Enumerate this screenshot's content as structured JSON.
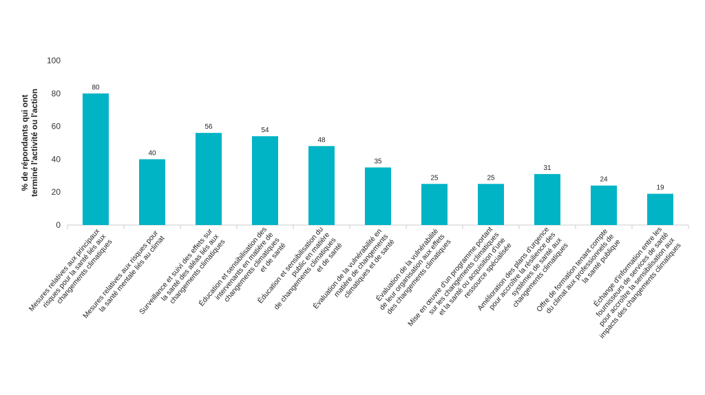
{
  "chart_data": {
    "type": "bar",
    "y_axis_label": [
      "% de répondants qui ont",
      "terminé l'activité ou l'action"
    ],
    "categories": [
      [
        "Mesures relatives aux principaux",
        "risques pour la santé liés aux",
        "changements climatiques"
      ],
      [
        "Mesures relatives aux risques pour",
        "la santé mentale liés au climat"
      ],
      [
        "Surveillance et suivi des effets sur",
        "la santé des aléas liés aux",
        "changements climatiques"
      ],
      [
        "Éducation et sensibilisation des",
        "intervenants en matière de",
        "changements climatiques",
        "et de santé"
      ],
      [
        "Éducation et sensibilisation du",
        "public en matière",
        "de changements climatiques",
        "et de santé"
      ],
      [
        "Évaluation de la vulnérabilité en",
        "matière de changements",
        "climatiques et de santé"
      ],
      [
        "Évaluation de la vulnérabilité",
        "de leur organisation aux effets",
        "des changements climatiques"
      ],
      [
        "Mise en œuvre d'un programme portant",
        "sur les changements climatiques",
        "et la santé ou acquisition d'une",
        "ressource spécialisée"
      ],
      [
        "Amélioration des plans d'urgence",
        "pour accroître la résilience des",
        "systèmes de santé aux",
        "changements climatiques"
      ],
      [
        "Offre de formation tenant compte",
        "du climat aux professionnels de",
        "la santé publique"
      ],
      [
        "Échange d'information entre les",
        "fournisseurs de services de santé",
        "pour accroître la sensibilisation aux",
        "impacts des changements climatiques"
      ]
    ],
    "values": [
      80,
      40,
      56,
      54,
      48,
      35,
      25,
      25,
      31,
      24,
      19
    ],
    "color": "#00b4c5",
    "ylim": [
      0,
      100
    ],
    "yticks": [
      0,
      20,
      40,
      60,
      80,
      100
    ]
  }
}
